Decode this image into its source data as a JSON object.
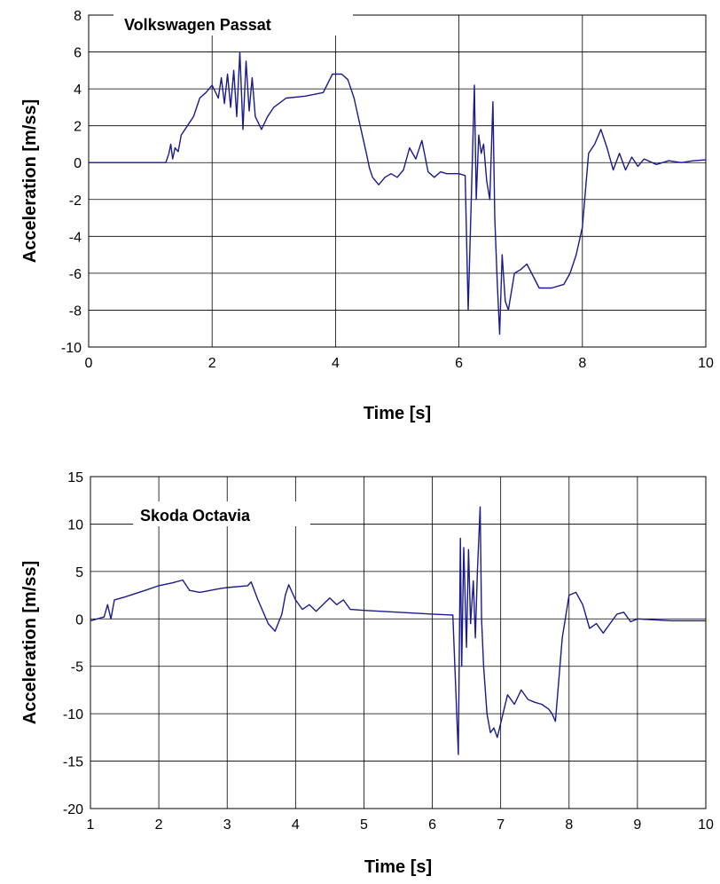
{
  "chart_data": [
    {
      "type": "line",
      "title": "Volkswagen Passat",
      "xlabel": "Time [s]",
      "ylabel": "Acceleration [m/ss]",
      "xlim": [
        0,
        10
      ],
      "ylim": [
        -10,
        8
      ],
      "xticks": [
        0,
        2,
        4,
        6,
        8,
        10
      ],
      "yticks": [
        -10,
        -8,
        -6,
        -4,
        -2,
        0,
        2,
        4,
        6,
        8
      ],
      "x_tick_labels": [
        "0",
        "2",
        "4",
        "6",
        "8",
        "10"
      ],
      "y_tick_labels": [
        "-10",
        "-8",
        "-6",
        "-4",
        "-2",
        "0",
        "2",
        "4",
        "6",
        "8"
      ],
      "grid": true,
      "color": "#1a1a8c",
      "series": [
        {
          "x": [
            0,
            0.5,
            1.0,
            1.25,
            1.3,
            1.33,
            1.36,
            1.4,
            1.45,
            1.5,
            1.6,
            1.7,
            1.8,
            1.9,
            2.0,
            2.1,
            2.15,
            2.2,
            2.25,
            2.3,
            2.35,
            2.4,
            2.45,
            2.5,
            2.55,
            2.6,
            2.65,
            2.7,
            2.8,
            2.9,
            3.0,
            3.2,
            3.5,
            3.8,
            3.95,
            4.1,
            4.2,
            4.3,
            4.4,
            4.5,
            4.55,
            4.6,
            4.7,
            4.8,
            4.9,
            5.0,
            5.1,
            5.2,
            5.3,
            5.4,
            5.5,
            5.6,
            5.7,
            5.8,
            6.0,
            6.1,
            6.15,
            6.2,
            6.25,
            6.28,
            6.32,
            6.36,
            6.4,
            6.45,
            6.5,
            6.55,
            6.58,
            6.62,
            6.66,
            6.7,
            6.75,
            6.8,
            6.9,
            7.0,
            7.1,
            7.3,
            7.5,
            7.7,
            7.8,
            7.9,
            8.0,
            8.1,
            8.2,
            8.3,
            8.4,
            8.5,
            8.6,
            8.7,
            8.8,
            8.9,
            9.0,
            9.2,
            9.4,
            9.6,
            9.8,
            10.0
          ],
          "y": [
            0,
            0,
            0,
            0,
            0.5,
            1.0,
            0.2,
            0.8,
            0.6,
            1.5,
            2.0,
            2.5,
            3.5,
            3.8,
            4.2,
            3.5,
            4.6,
            3.2,
            4.8,
            3.0,
            5.0,
            2.5,
            6.0,
            1.8,
            5.5,
            2.8,
            4.6,
            2.5,
            1.8,
            2.5,
            3.0,
            3.5,
            3.6,
            3.8,
            4.8,
            4.8,
            4.5,
            3.5,
            2.0,
            0.5,
            -0.3,
            -0.8,
            -1.2,
            -0.8,
            -0.6,
            -0.8,
            -0.4,
            0.8,
            0.2,
            1.2,
            -0.5,
            -0.8,
            -0.5,
            -0.6,
            -0.6,
            -0.7,
            -8.0,
            -2.0,
            4.2,
            -2.0,
            1.5,
            0.5,
            1.0,
            -1.0,
            -2.0,
            3.3,
            -3.0,
            -6.5,
            -9.3,
            -5.0,
            -7.5,
            -8.0,
            -6.0,
            -5.8,
            -5.5,
            -6.8,
            -6.8,
            -6.6,
            -6.0,
            -5.0,
            -3.5,
            0.5,
            1.0,
            1.8,
            0.8,
            -0.4,
            0.5,
            -0.4,
            0.3,
            -0.2,
            0.2,
            -0.1,
            0.1,
            0.0,
            0.1,
            0.15
          ]
        }
      ]
    },
    {
      "type": "line",
      "title": "Skoda Octavia",
      "xlabel": "Time [s]",
      "ylabel": "Acceleration [m/ss]",
      "xlim": [
        1,
        10
      ],
      "ylim": [
        -20,
        15
      ],
      "xticks": [
        1,
        2,
        3,
        4,
        5,
        6,
        7,
        8,
        9,
        10
      ],
      "yticks": [
        -20,
        -15,
        -10,
        -5,
        0,
        5,
        10,
        15
      ],
      "x_tick_labels": [
        "1",
        "2",
        "3",
        "4",
        "5",
        "6",
        "7",
        "8",
        "9",
        "10"
      ],
      "y_tick_labels": [
        "-20",
        "-15",
        "-10",
        "-5",
        "0",
        "5",
        "10",
        "15"
      ],
      "grid": true,
      "color": "#1a1a8c",
      "series": [
        {
          "x": [
            1.0,
            1.1,
            1.2,
            1.25,
            1.3,
            1.35,
            1.5,
            1.8,
            2.0,
            2.2,
            2.35,
            2.45,
            2.6,
            2.9,
            3.0,
            3.3,
            3.35,
            3.45,
            3.6,
            3.7,
            3.8,
            3.85,
            3.9,
            4.0,
            4.1,
            4.2,
            4.3,
            4.5,
            4.6,
            4.7,
            4.8,
            5.0,
            5.5,
            6.0,
            6.3,
            6.38,
            6.41,
            6.43,
            6.46,
            6.5,
            6.53,
            6.56,
            6.6,
            6.63,
            6.66,
            6.7,
            6.72,
            6.75,
            6.8,
            6.85,
            6.9,
            6.95,
            7.0,
            7.1,
            7.2,
            7.3,
            7.4,
            7.5,
            7.6,
            7.7,
            7.75,
            7.8,
            7.9,
            8.0,
            8.1,
            8.2,
            8.3,
            8.4,
            8.5,
            8.6,
            8.7,
            8.8,
            8.9,
            9.0,
            9.5,
            10.0
          ],
          "y": [
            -0.2,
            0.0,
            0.2,
            1.5,
            0.0,
            2.0,
            2.3,
            3.0,
            3.5,
            3.8,
            4.1,
            3.0,
            2.8,
            3.2,
            3.3,
            3.5,
            3.9,
            2.0,
            -0.5,
            -1.3,
            0.5,
            2.5,
            3.6,
            2.0,
            1.0,
            1.5,
            0.8,
            2.2,
            1.5,
            2.0,
            1.0,
            0.9,
            0.7,
            0.5,
            0.4,
            -14.3,
            8.5,
            -5.0,
            7.5,
            -3.0,
            7.3,
            -0.5,
            4.0,
            -2.0,
            5.0,
            11.8,
            0.0,
            -5.0,
            -10.0,
            -12.0,
            -11.5,
            -12.5,
            -11.0,
            -8.0,
            -9.0,
            -7.5,
            -8.5,
            -8.8,
            -9.0,
            -9.5,
            -10.0,
            -10.8,
            -2.0,
            2.5,
            2.8,
            1.5,
            -1.0,
            -0.5,
            -1.5,
            -0.5,
            0.5,
            0.7,
            -0.3,
            0.0,
            -0.2,
            -0.2
          ]
        }
      ]
    }
  ]
}
